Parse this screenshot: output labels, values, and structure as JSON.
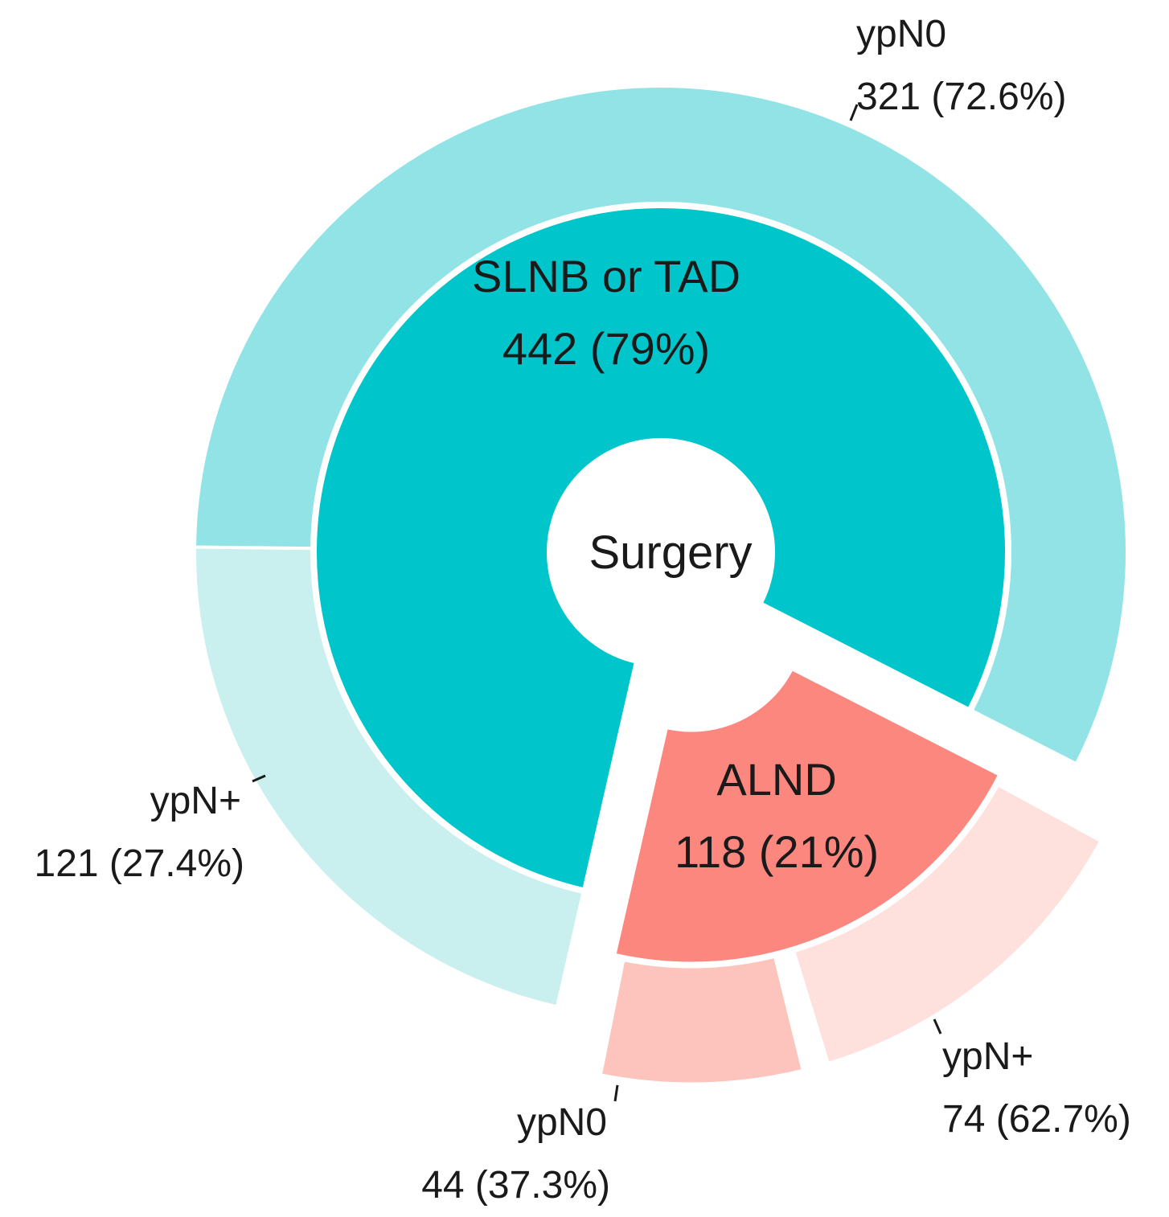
{
  "chart_data": {
    "type": "sunburst",
    "center_label": "Surgery",
    "inner": [
      {
        "name": "SLNB or TAD",
        "value": 442,
        "percent_label": "442 (79%)",
        "color": "#00c5cb",
        "offset": false
      },
      {
        "name": "ALND",
        "value": 118,
        "percent_label": "118 (21%)",
        "color": "#fc877f",
        "offset": true
      }
    ],
    "outer": [
      {
        "parent": "SLNB or TAD",
        "name": "ypN0",
        "value": 321,
        "percent_label": "321 (72.6%)",
        "color": "#91e3e5",
        "offset": false
      },
      {
        "parent": "SLNB or TAD",
        "name": "ypN+",
        "value": 121,
        "percent_label": "121 (27.4%)",
        "color": "#c9efef",
        "offset": false
      },
      {
        "parent": "ALND",
        "name": "ypN0",
        "value": 44,
        "percent_label": "44 (37.3%)",
        "color": "#fdc3bd",
        "offset": true
      },
      {
        "parent": "ALND",
        "name": "ypN+",
        "value": 74,
        "percent_label": "74 (62.7%)",
        "color": "#fee0dc",
        "offset": true
      }
    ]
  }
}
